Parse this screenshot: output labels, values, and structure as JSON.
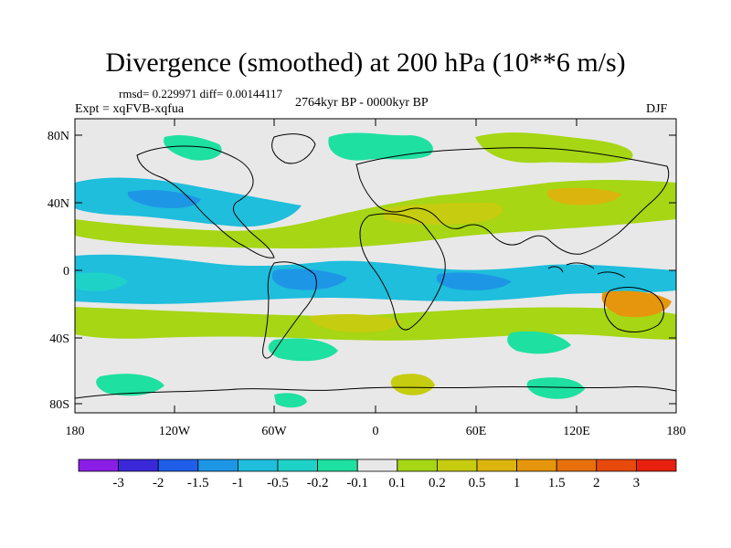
{
  "figure": {
    "title": "Divergence (smoothed) at 200 hPa (10**6 m/s)",
    "stats": "rmsd= 0.229971  diff= 0.00144117",
    "experiment": "Expt = xqFVB-xqfua",
    "period": "2764kyr BP - 0000kyr BP",
    "season": "DJF"
  },
  "axes": {
    "lat_labels": [
      "80N",
      "40N",
      "0",
      "40S",
      "80S"
    ],
    "lon_labels": [
      "180",
      "120W",
      "60W",
      "0",
      "60E",
      "120E",
      "180"
    ]
  },
  "colorbar": {
    "labels": [
      "-3",
      "-2",
      "-1.5",
      "-1",
      "-0.5",
      "-0.2",
      "-0.1",
      "0.1",
      "0.2",
      "0.5",
      "1",
      "1.5",
      "2",
      "3"
    ],
    "colors": [
      "#8a1ee6",
      "#3a28d8",
      "#1e5ee8",
      "#1e96e6",
      "#1ebedc",
      "#1ed2c8",
      "#1ee0a0",
      "#e8e8e8",
      "#a6d614",
      "#c6cc10",
      "#dcb40e",
      "#e6960c",
      "#e8700c",
      "#e84a0c",
      "#e8200e"
    ]
  },
  "map_fill": {
    "strong_blue": "#1e96e6",
    "blue": "#1ebedc",
    "teal": "#1ed2c8",
    "green": "#1ee0a0",
    "neutral": "#e8e8e8",
    "lime": "#a6d614",
    "olive": "#c6cc10",
    "yellow": "#dcb40e",
    "orange": "#e6960c"
  }
}
